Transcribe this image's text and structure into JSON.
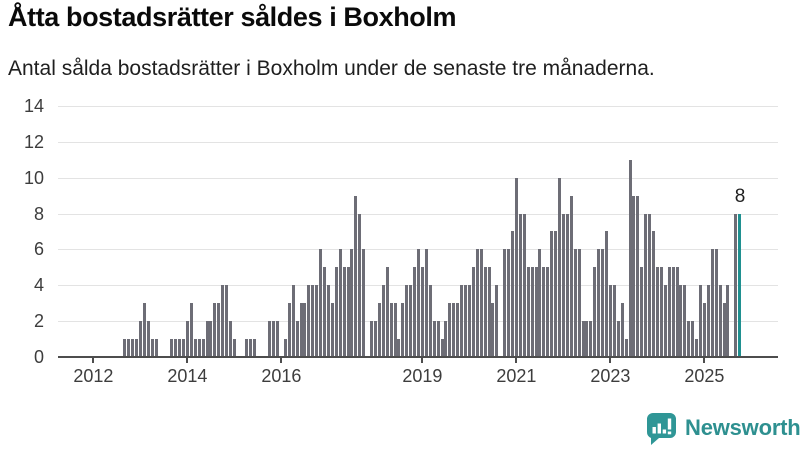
{
  "title": "Åtta bostadsrätter såldes i Boxholm",
  "subtitle": "Antal sålda bostadsrätter i Boxholm under de senaste tre månaderna.",
  "chart_data": {
    "type": "bar",
    "start_month": "2011-06",
    "frequency": "monthly",
    "values": [
      0,
      0,
      0,
      0,
      0,
      0,
      0,
      0,
      0,
      0,
      0,
      0,
      0,
      0,
      0,
      1,
      1,
      1,
      1,
      2,
      3,
      2,
      1,
      1,
      0,
      0,
      0,
      1,
      1,
      1,
      1,
      2,
      3,
      1,
      1,
      1,
      2,
      2,
      3,
      3,
      4,
      4,
      2,
      1,
      0,
      0,
      1,
      1,
      1,
      0,
      0,
      0,
      2,
      2,
      2,
      0,
      1,
      3,
      4,
      2,
      3,
      3,
      4,
      4,
      4,
      6,
      5,
      4,
      3,
      5,
      6,
      5,
      5,
      6,
      9,
      8,
      6,
      0,
      2,
      2,
      3,
      4,
      5,
      3,
      3,
      1,
      3,
      4,
      4,
      5,
      6,
      5,
      6,
      4,
      2,
      2,
      1,
      2,
      3,
      3,
      3,
      4,
      4,
      4,
      5,
      6,
      6,
      5,
      5,
      3,
      4,
      0,
      6,
      6,
      7,
      10,
      8,
      8,
      5,
      5,
      5,
      6,
      5,
      5,
      7,
      7,
      10,
      8,
      8,
      9,
      6,
      6,
      2,
      2,
      2,
      5,
      6,
      6,
      7,
      4,
      4,
      2,
      3,
      1,
      11,
      9,
      9,
      5,
      8,
      8,
      7,
      5,
      5,
      4,
      5,
      5,
      5,
      4,
      4,
      2,
      2,
      1,
      4,
      3,
      4,
      6,
      6,
      4,
      3,
      4,
      0,
      8,
      8
    ],
    "highlight_last_bar": true,
    "last_value_label": "8",
    "ylim": [
      0,
      14
    ],
    "yticks": [
      0,
      2,
      4,
      6,
      8,
      10,
      12,
      14
    ],
    "xticks": [
      {
        "label": "2012",
        "month_index": 7
      },
      {
        "label": "2014",
        "month_index": 31
      },
      {
        "label": "2016",
        "month_index": 55
      },
      {
        "label": "2019",
        "month_index": 91
      },
      {
        "label": "2021",
        "month_index": 115
      },
      {
        "label": "2023",
        "month_index": 139
      },
      {
        "label": "2025",
        "month_index": 163
      }
    ],
    "grid": true,
    "legend": "none",
    "colors": {
      "bar": "#6d6d76",
      "highlight": "#1f9090",
      "gridline": "#e3e3e3",
      "axis": "#4d4d4d",
      "tick_text": "#3d3d3d"
    }
  },
  "branding": {
    "logo_text": "Newsworthy",
    "logo_icon": "bar-chart-speech-bubble-icon",
    "logo_color": "#2f9696"
  }
}
